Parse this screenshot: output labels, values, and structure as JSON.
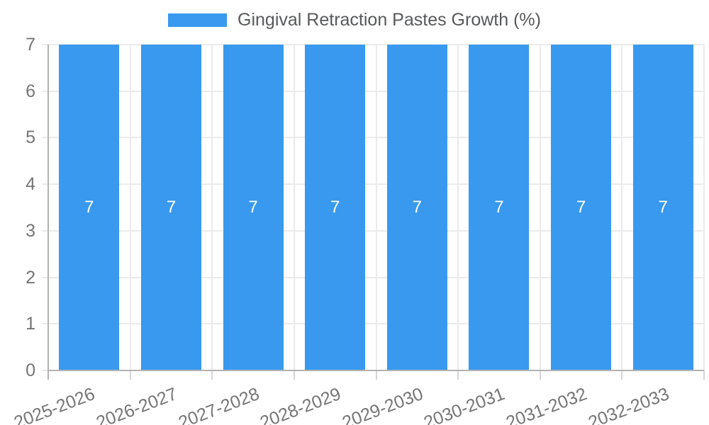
{
  "chart_data": {
    "type": "bar",
    "title": "Gingival Retraction Pastes Growth (%)",
    "legend": {
      "position": "top",
      "label": "Gingival Retraction Pastes Growth (%)"
    },
    "categories": [
      "2025-2026",
      "2026-2027",
      "2027-2028",
      "2028-2029",
      "2029-2030",
      "2030-2031",
      "2031-2032",
      "2032-2033"
    ],
    "values": [
      7,
      7,
      7,
      7,
      7,
      7,
      7,
      7
    ],
    "bar_labels": [
      "7",
      "7",
      "7",
      "7",
      "7",
      "7",
      "7",
      "7"
    ],
    "xlabel": "",
    "ylabel": "",
    "ylim": [
      0,
      7
    ],
    "yticks": [
      0,
      1,
      2,
      3,
      4,
      5,
      6,
      7
    ],
    "grid": true,
    "colors": {
      "bar": "#3899ee",
      "bar_label": "#ffffff",
      "axis_line": "#b3b3b3",
      "gridline": "#ebebeb",
      "tick_label": "#757575",
      "legend_text": "#58595b",
      "background": "#ffffff"
    }
  }
}
